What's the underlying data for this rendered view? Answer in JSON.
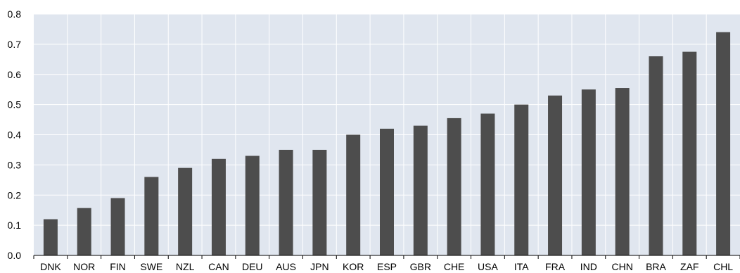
{
  "chart_data": {
    "type": "bar",
    "title": "",
    "xlabel": "",
    "ylabel": "",
    "categories": [
      "DNK",
      "NOR",
      "FIN",
      "SWE",
      "NZL",
      "CAN",
      "DEU",
      "AUS",
      "JPN",
      "KOR",
      "ESP",
      "GBR",
      "CHE",
      "USA",
      "ITA",
      "FRA",
      "IND",
      "CHN",
      "BRA",
      "ZAF",
      "CHL"
    ],
    "values": [
      0.12,
      0.157,
      0.19,
      0.26,
      0.29,
      0.32,
      0.33,
      0.35,
      0.35,
      0.4,
      0.42,
      0.43,
      0.455,
      0.47,
      0.5,
      0.53,
      0.55,
      0.555,
      0.66,
      0.675,
      0.74
    ],
    "ylim": [
      0,
      0.8
    ],
    "yticks": [
      "0.0",
      "0.1",
      "0.2",
      "0.3",
      "0.4",
      "0.5",
      "0.6",
      "0.7",
      "0.8"
    ],
    "grid": true,
    "legend": "none",
    "colors": {
      "bar": "#4d4d4d",
      "plot_background": "#e0e6ef",
      "gridline": "#ffffff",
      "axis": "#000000"
    }
  }
}
